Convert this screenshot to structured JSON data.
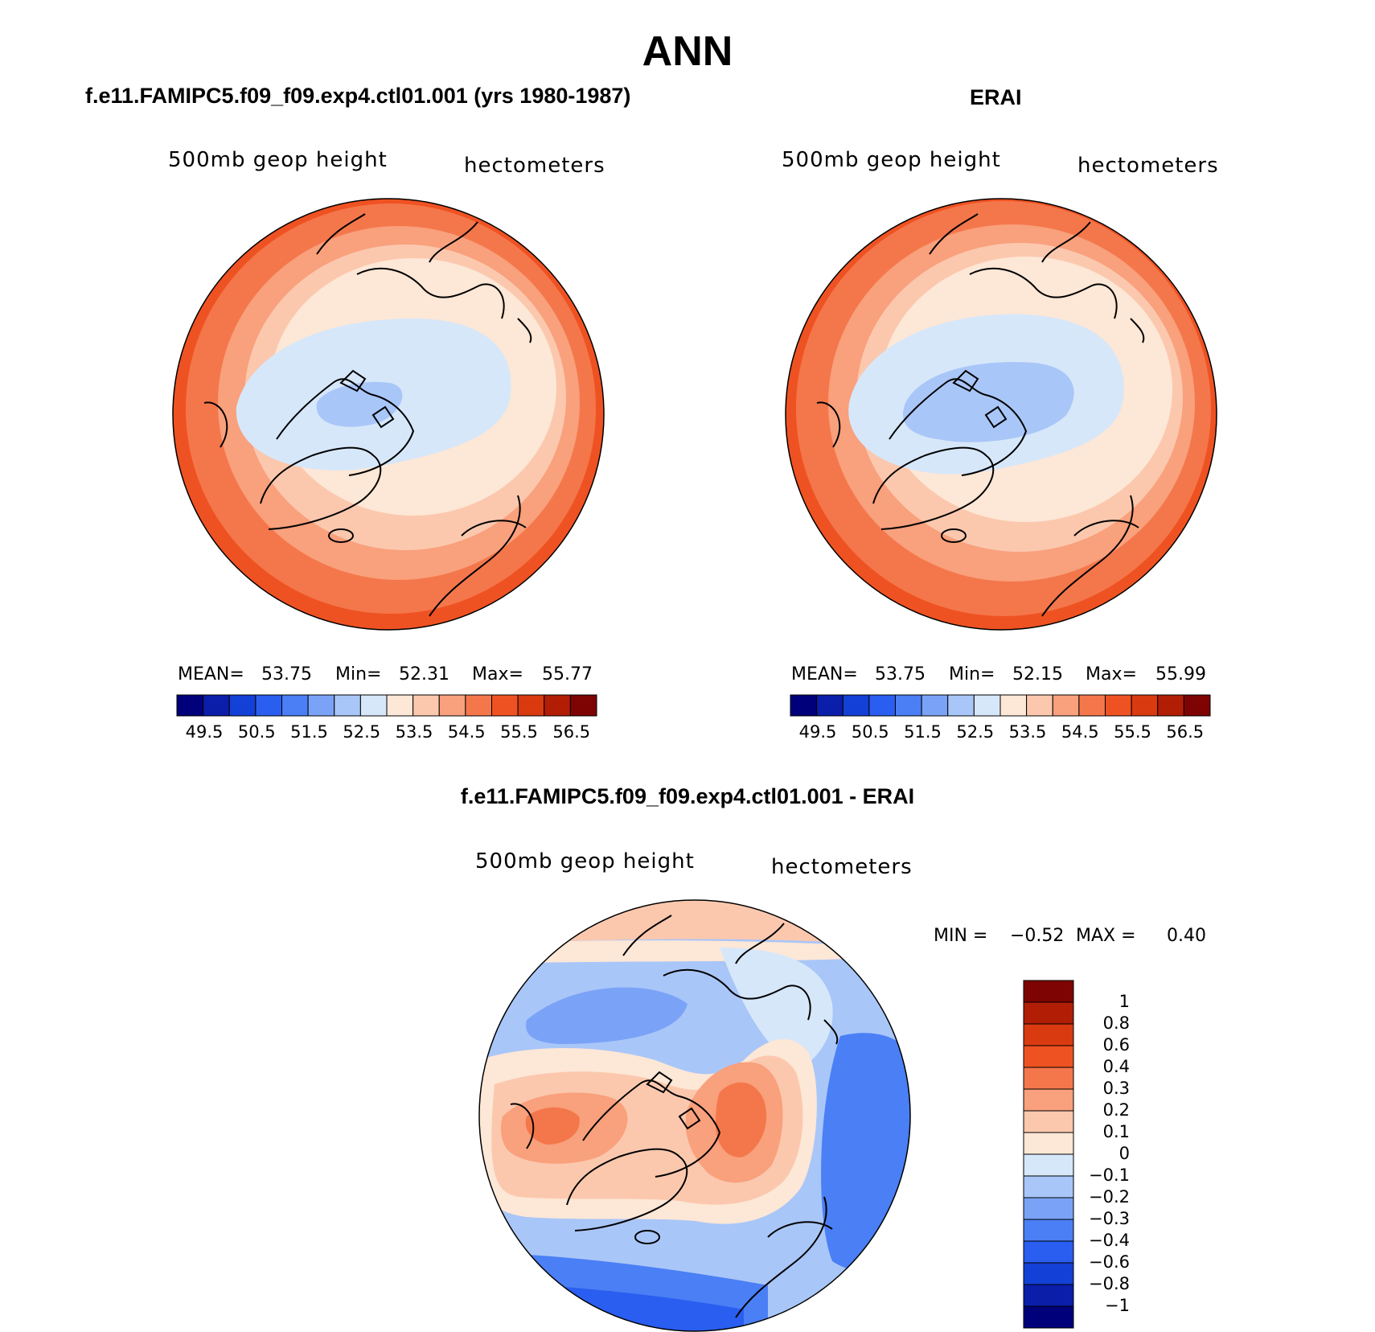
{
  "title": "ANN",
  "panels": [
    {
      "title": "f.e11.FAMIPC5.f09_f09.exp4.ctl01.001 (yrs 1980-1987)",
      "variable": "500mb geop height",
      "units": "hectometers",
      "mean_label": "MEAN=",
      "mean": "53.75",
      "min_label": "Min=",
      "min": "52.31",
      "max_label": "Max=",
      "max": "55.77"
    },
    {
      "title": "ERAI",
      "variable": "500mb geop height",
      "units": "hectometers",
      "mean_label": "MEAN=",
      "mean": "53.75",
      "min_label": "Min=",
      "min": "52.15",
      "max_label": "Max=",
      "max": "55.99"
    }
  ],
  "diff_panel": {
    "title": "f.e11.FAMIPC5.f09_f09.exp4.ctl01.001 - ERAI",
    "variable": "500mb geop height",
    "units": "hectometers",
    "min_label": "MIN =",
    "min": "−0.52",
    "max_label": "MAX =",
    "max": "0.40"
  },
  "colorbar_field": {
    "colors": [
      "#00007a",
      "#0a1eaa",
      "#1340d6",
      "#2a5ef0",
      "#4a7ff5",
      "#7aa3f7",
      "#a9c6f8",
      "#d6e7fa",
      "#fde7d6",
      "#fbc8ae",
      "#f9a07c",
      "#f4774b",
      "#ef5222",
      "#d93a10",
      "#b21d06",
      "#7e0303"
    ],
    "labels": [
      "49.5",
      "50.5",
      "51.5",
      "52.5",
      "53.5",
      "54.5",
      "55.5",
      "56.5"
    ]
  },
  "colorbar_diff": {
    "colors": [
      "#7e0303",
      "#b21d06",
      "#d93a10",
      "#ef5222",
      "#f4774b",
      "#f9a07c",
      "#fbc8ae",
      "#fde7d6",
      "#d6e7fa",
      "#a9c6f8",
      "#7aa3f7",
      "#4a7ff5",
      "#2a5ef0",
      "#1340d6",
      "#0a1eaa",
      "#00007a"
    ],
    "labels": [
      "1",
      "0.8",
      "0.6",
      "0.4",
      "0.3",
      "0.2",
      "0.1",
      "0",
      "−0.1",
      "−0.2",
      "−0.3",
      "−0.4",
      "−0.6",
      "−0.8",
      "−1"
    ]
  }
}
